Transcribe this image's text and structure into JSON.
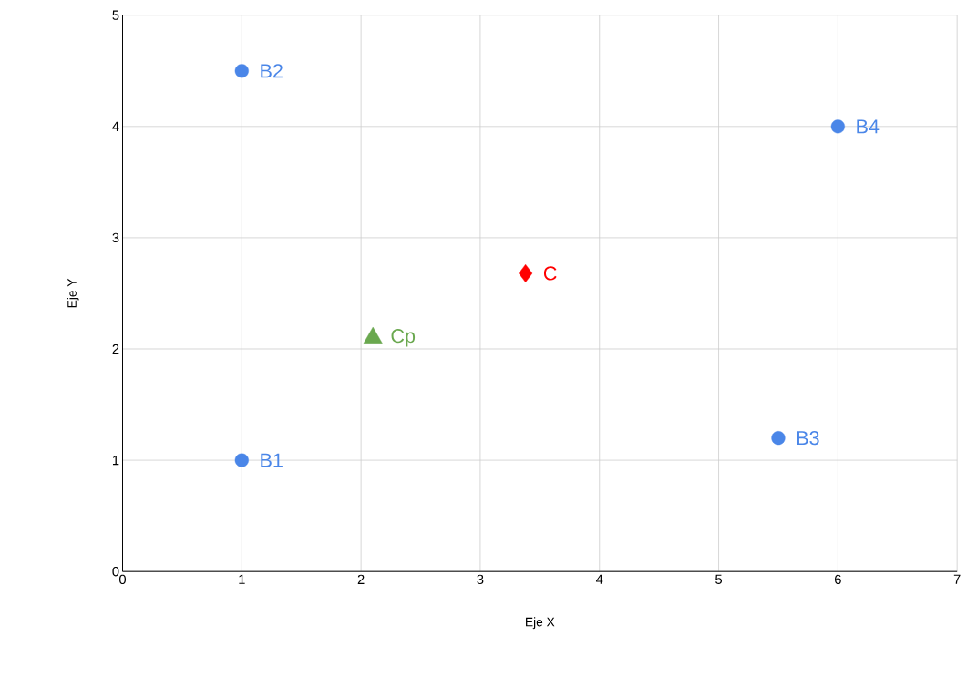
{
  "chart_data": {
    "type": "scatter",
    "xlabel": "Eje X",
    "ylabel": "Eje Y",
    "series": [
      {
        "name": "B1",
        "color": "#4a86e8",
        "marker": "circle",
        "x": [
          1
        ],
        "values": [
          1
        ]
      },
      {
        "name": "B2",
        "color": "#4a86e8",
        "marker": "circle",
        "x": [
          1
        ],
        "values": [
          4.5
        ]
      },
      {
        "name": "B3",
        "color": "#4a86e8",
        "marker": "circle",
        "x": [
          5.5
        ],
        "values": [
          1.2
        ]
      },
      {
        "name": "B4",
        "color": "#4a86e8",
        "marker": "circle",
        "x": [
          6
        ],
        "values": [
          4
        ]
      },
      {
        "name": "C",
        "color": "#ff0000",
        "marker": "diamond",
        "x": [
          3.38
        ],
        "values": [
          2.68
        ]
      },
      {
        "name": "Cp",
        "color": "#6aa84f",
        "marker": "triangle",
        "x": [
          2.1
        ],
        "values": [
          2.1
        ]
      }
    ],
    "xlim": [
      0,
      7
    ],
    "ylim": [
      0,
      5
    ],
    "xticks": [
      0,
      1,
      2,
      3,
      4,
      5,
      6,
      7
    ],
    "yticks": [
      0,
      1,
      2,
      3,
      4,
      5
    ],
    "grid": true
  }
}
